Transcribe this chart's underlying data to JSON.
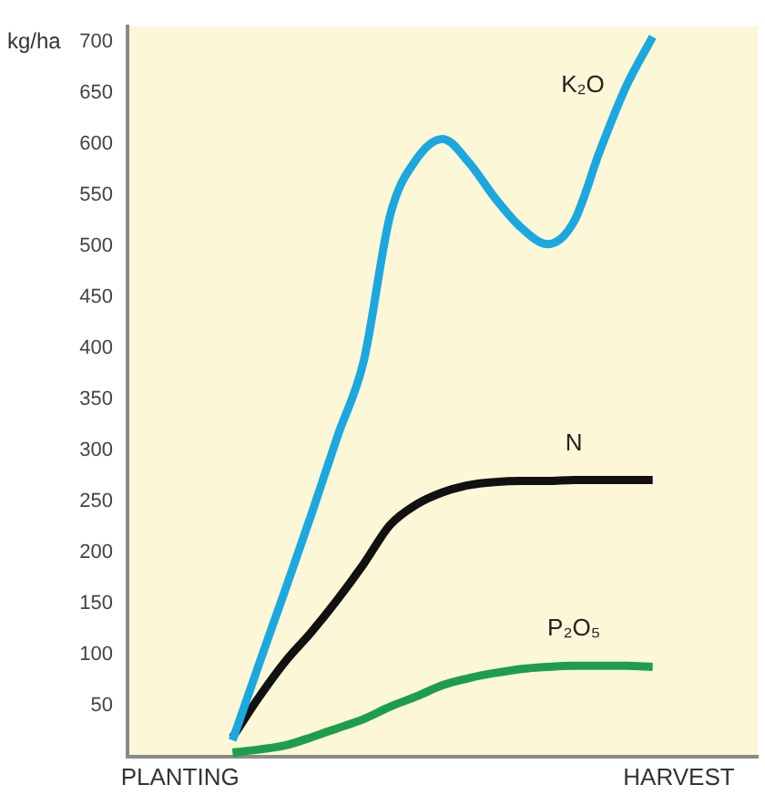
{
  "chart_data": {
    "type": "line",
    "ylabel": "kg/ha",
    "categories": [
      null,
      null,
      "PLANTING",
      null,
      null,
      null,
      null,
      null,
      null,
      null,
      null,
      null,
      null,
      null,
      null,
      null,
      null,
      null,
      null,
      null,
      null,
      "HARVEST",
      null,
      null,
      null
    ],
    "series": [
      {
        "name": "K₂O",
        "color": "#1ba8e0",
        "values": [
          null,
          null,
          null,
          null,
          16,
          90,
          163,
          237,
          314,
          388,
          530,
          585,
          605,
          582,
          547,
          518,
          502,
          524,
          594,
          657,
          705,
          null,
          null,
          null,
          null
        ]
      },
      {
        "name": "N",
        "color": "#111111",
        "values": [
          null,
          null,
          null,
          null,
          19,
          58,
          93,
          122,
          154,
          189,
          227,
          247,
          259,
          266,
          269,
          270,
          270,
          271,
          271,
          271,
          271,
          null,
          null,
          null,
          null
        ]
      },
      {
        "name": "P₂O₅",
        "color": "#1e9e4a",
        "values": [
          null,
          null,
          null,
          null,
          4,
          7,
          11,
          19,
          28,
          37,
          49,
          59,
          70,
          77,
          82,
          86,
          88,
          89,
          89,
          89,
          88,
          null,
          null,
          null,
          null
        ]
      }
    ],
    "ylim": [
      0,
      715
    ],
    "yticks": [
      50,
      100,
      150,
      200,
      250,
      300,
      350,
      400,
      450,
      500,
      550,
      600,
      650,
      700
    ],
    "grid": false,
    "legend": false,
    "marker": "none",
    "line_style": "solid"
  }
}
